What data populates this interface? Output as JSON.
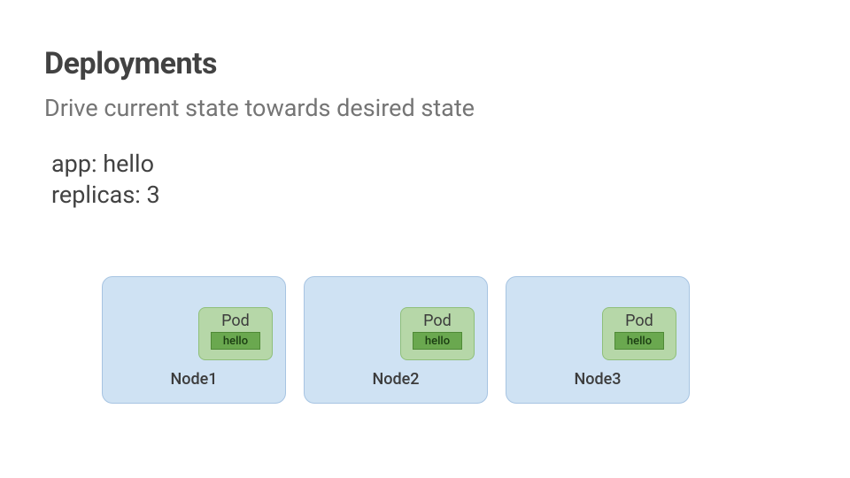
{
  "slide": {
    "title": "Deployments",
    "subtitle": "Drive current state towards desired state",
    "title_fontsize": 34,
    "title_color": "#424242",
    "subtitle_fontsize": 27,
    "subtitle_color": "#757575"
  },
  "spec": {
    "lines": [
      "app: hello",
      "replicas: 3"
    ],
    "fontsize": 27,
    "color": "#424242"
  },
  "style": {
    "node_bg": "#cfe2f3",
    "node_border": "#a7c4e2",
    "node_label_color": "#3c3c3c",
    "node_label_fontsize": 18,
    "pod_bg": "#b6d7a8",
    "pod_border": "#8fbf7a",
    "pod_title_color": "#3c3c3c",
    "pod_title_fontsize": 18,
    "container_bg": "#6aa84f",
    "container_border": "#4f8a36",
    "container_text_color": "#1b3d12",
    "container_fontsize": 13
  },
  "nodes": [
    {
      "label": "Node1",
      "pod_title": "Pod",
      "container_label": "hello"
    },
    {
      "label": "Node2",
      "pod_title": "Pod",
      "container_label": "hello"
    },
    {
      "label": "Node3",
      "pod_title": "Pod",
      "container_label": "hello"
    }
  ]
}
